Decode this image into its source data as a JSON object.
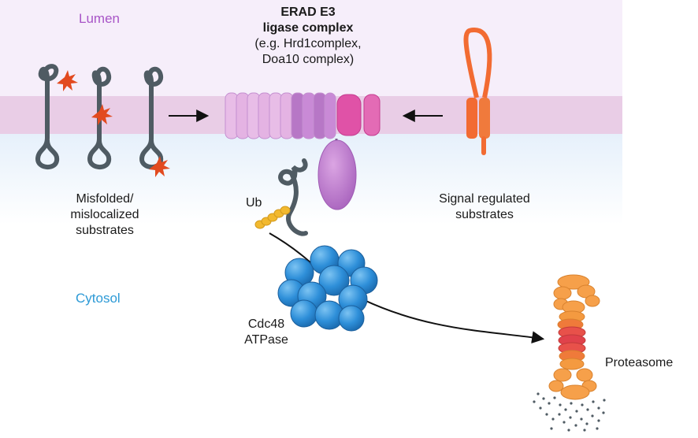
{
  "regions": {
    "lumen": "Lumen",
    "cytosol": "Cytosol"
  },
  "complex": {
    "title_line1": "ERAD E3",
    "title_line2": "ligase complex",
    "example_line1": "(e.g. Hrd1complex,",
    "example_line2": "Doa10 complex)"
  },
  "substrates": {
    "misfolded_line1": "Misfolded/",
    "misfolded_line2": "mislocalized",
    "misfolded_line3": "substrates",
    "signal_line1": "Signal regulated",
    "signal_line2": "substrates"
  },
  "ubiquitin": "Ub",
  "cdc48": {
    "line1": "Cdc48",
    "line2": "ATPase"
  },
  "proteasome": "Proteasome",
  "colors": {
    "lumen_bg": "#f6eefa",
    "membrane": "#e9cde6",
    "cytosol_bg": "#eaf2fb",
    "substrate_line": "#4f5b63",
    "lesion_star": "#e24a1f",
    "complex_light": "#e6b3e4",
    "complex_mid": "#b777c6",
    "complex_pink": "#e052a7",
    "signal_orange": "#f26b32",
    "ub_yellow": "#f2b92f",
    "cdc48_blue": "#2e8fd9",
    "proteasome_orange": "#f6a04a",
    "proteasome_red": "#e0424b"
  }
}
